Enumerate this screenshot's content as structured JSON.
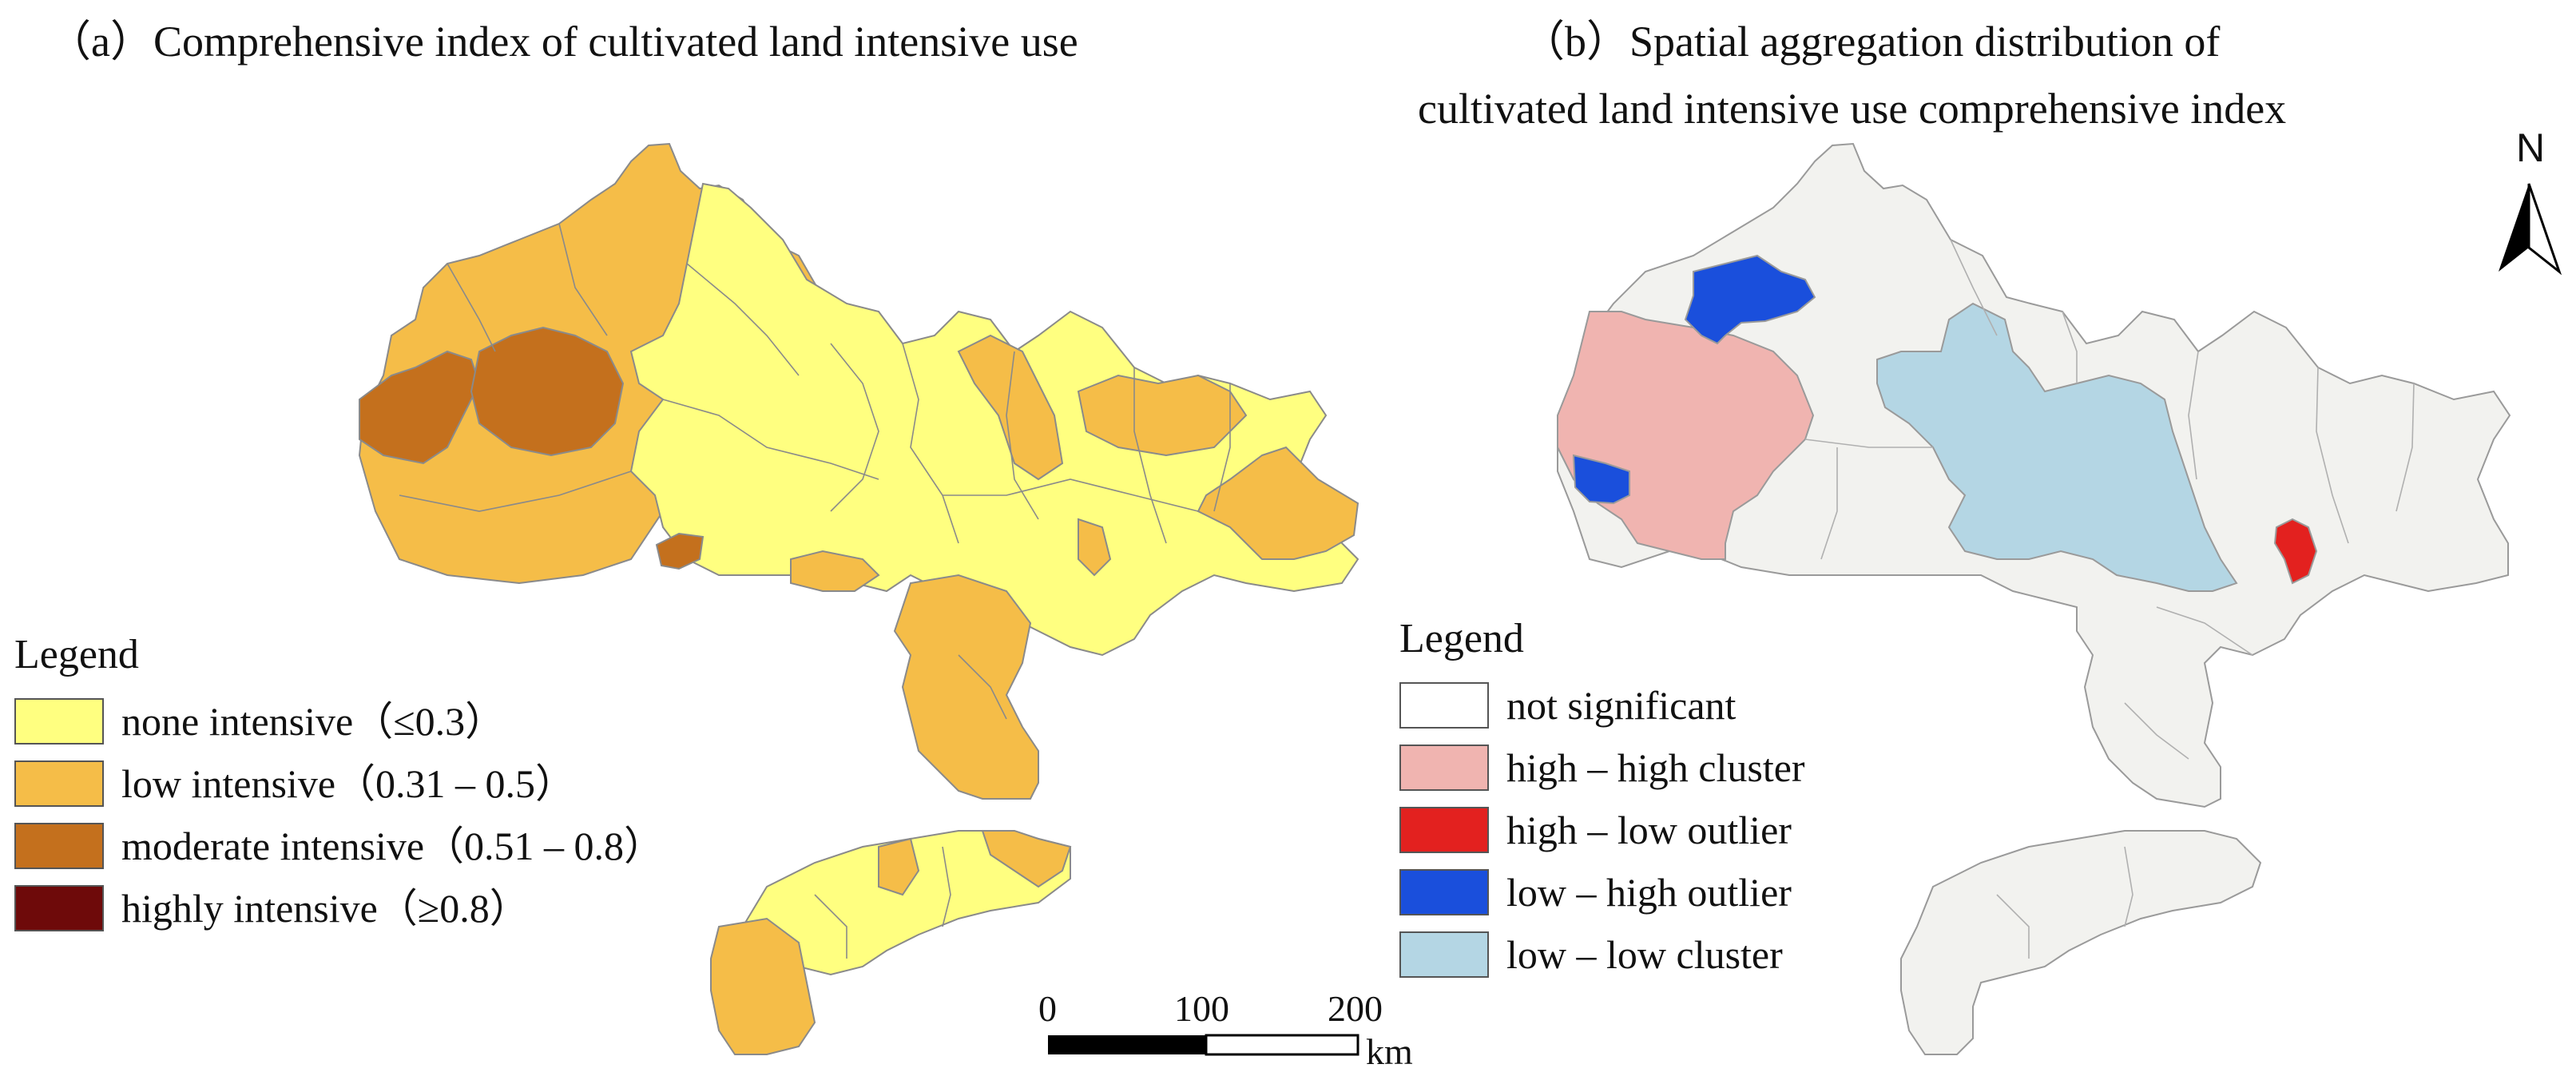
{
  "panel_a": {
    "title": "（a）Comprehensive index of cultivated land intensive use",
    "legend_title": "Legend",
    "legend": [
      {
        "label": "none intensive（≤0.3）",
        "color": "#ffff80"
      },
      {
        "label": "low intensive（0.31 – 0.5）",
        "color": "#f5bd48"
      },
      {
        "label": "moderate intensive（0.51 – 0.8）",
        "color": "#c4701d"
      },
      {
        "label": "highly intensive（≥0.8）",
        "color": "#6e0a0a"
      }
    ]
  },
  "panel_b": {
    "title_line1": "（b）Spatial aggregation distribution of",
    "title_line2": "cultivated land intensive use comprehensive index",
    "legend_title": "Legend",
    "legend": [
      {
        "label": "not significant",
        "color": "#ffffff"
      },
      {
        "label": "high – high cluster",
        "color": "#f0b4b0"
      },
      {
        "label": "high – low outlier",
        "color": "#e3211f"
      },
      {
        "label": "low – high outlier",
        "color": "#1a4fdc"
      },
      {
        "label": "low – low cluster",
        "color": "#b4d6e4"
      }
    ]
  },
  "scale_bar": {
    "ticks": [
      "0",
      "100",
      "200"
    ],
    "unit": "km"
  },
  "north_arrow": {
    "label": "N"
  },
  "colors": {
    "base_b": "#f2f2ef",
    "boundary": "#888888"
  }
}
